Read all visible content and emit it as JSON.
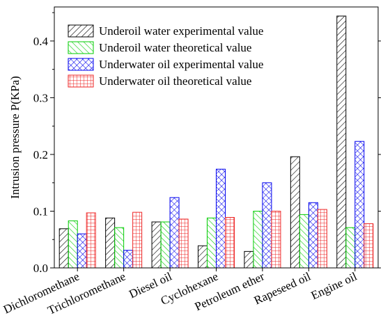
{
  "chart_data": {
    "type": "bar",
    "title": "",
    "xlabel": "",
    "ylabel": "Intrusion pressure P(KPa)",
    "ylim": [
      0,
      0.46
    ],
    "yticks": [
      0.0,
      0.1,
      0.2,
      0.3,
      0.4
    ],
    "ytick_labels": [
      "0.0",
      "0.1",
      "0.2",
      "0.3",
      "0.4"
    ],
    "grid": false,
    "legend_position": "top-left",
    "categories": [
      "Dichloromethane",
      "Trichloromethane",
      "Diesel oil",
      "Cyclohexane",
      "Petroleum ether",
      "Rapeseed oil",
      "Engine oil"
    ],
    "series": [
      {
        "name": "Underoil water experimental value",
        "values": [
          0.069,
          0.088,
          0.081,
          0.039,
          0.029,
          0.196,
          0.444
        ],
        "color": "#000000",
        "pattern": "diag-right"
      },
      {
        "name": "Underoil water theoretical value",
        "values": [
          0.083,
          0.071,
          0.081,
          0.088,
          0.1,
          0.094,
          0.071
        ],
        "color": "#00cc00",
        "pattern": "diag-left"
      },
      {
        "name": "Underwater oil experimental value",
        "values": [
          0.06,
          0.031,
          0.124,
          0.174,
          0.15,
          0.115,
          0.223
        ],
        "color": "#0000ee",
        "pattern": "crosshatch"
      },
      {
        "name": "Underwater oil theoretical value",
        "values": [
          0.097,
          0.098,
          0.086,
          0.089,
          0.1,
          0.103,
          0.078
        ],
        "color": "#ee2222",
        "pattern": "grid"
      }
    ]
  }
}
